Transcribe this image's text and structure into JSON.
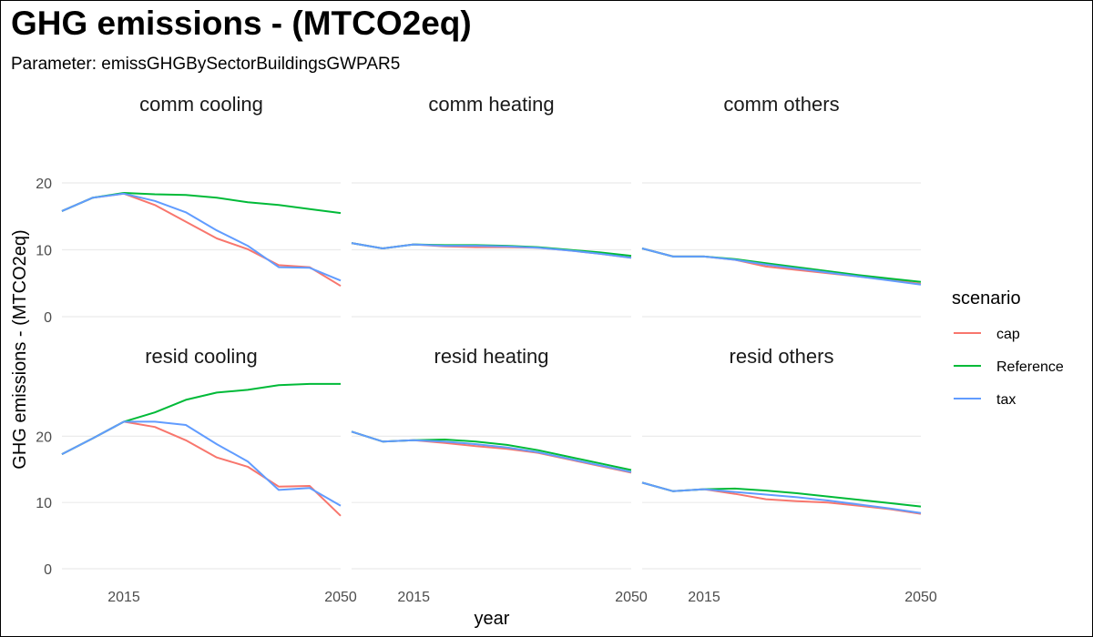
{
  "title": "GHG emissions - (MTCO2eq)",
  "subtitle": "Parameter: emissGHGBySectorBuildingsGWPAR5",
  "chart_data": {
    "type": "line",
    "xlabel": "year",
    "ylabel": "GHG emissions - (MTCO2eq)",
    "x": [
      2005,
      2010,
      2015,
      2020,
      2025,
      2030,
      2035,
      2040,
      2045,
      2050
    ],
    "x_ticks": [
      2015,
      2050
    ],
    "xlim": [
      2005,
      2050
    ],
    "y_ticks": [
      0,
      10,
      20
    ],
    "grid": true,
    "legend": {
      "title": "scenario",
      "placement": "right",
      "entries": [
        {
          "name": "cap",
          "color": "#F8766D"
        },
        {
          "name": "Reference",
          "color": "#00BA38"
        },
        {
          "name": "tax",
          "color": "#619CFF"
        }
      ]
    },
    "rows": [
      {
        "ylim": [
          0,
          27
        ]
      },
      {
        "ylim": [
          0,
          30
        ]
      }
    ],
    "panels": [
      {
        "title": "comm cooling",
        "series": [
          {
            "name": "cap",
            "values": [
              15.8,
              17.8,
              18.4,
              16.7,
              14.2,
              11.7,
              10.1,
              7.7,
              7.4,
              4.6
            ]
          },
          {
            "name": "Reference",
            "values": [
              15.8,
              17.8,
              18.5,
              18.3,
              18.2,
              17.8,
              17.1,
              16.7,
              16.1,
              15.5
            ]
          },
          {
            "name": "tax",
            "values": [
              15.8,
              17.8,
              18.4,
              17.3,
              15.6,
              12.9,
              10.6,
              7.4,
              7.3,
              5.4
            ]
          }
        ]
      },
      {
        "title": "comm heating",
        "series": [
          {
            "name": "cap",
            "values": [
              11.0,
              10.2,
              10.8,
              10.5,
              10.4,
              10.4,
              10.3,
              9.9,
              9.4,
              8.8
            ]
          },
          {
            "name": "Reference",
            "values": [
              11.0,
              10.2,
              10.8,
              10.7,
              10.7,
              10.6,
              10.4,
              10.0,
              9.6,
              9.1
            ]
          },
          {
            "name": "tax",
            "values": [
              11.0,
              10.2,
              10.8,
              10.6,
              10.6,
              10.5,
              10.3,
              9.9,
              9.4,
              8.8
            ]
          }
        ]
      },
      {
        "title": "comm others",
        "series": [
          {
            "name": "cap",
            "values": [
              10.2,
              9.0,
              9.0,
              8.5,
              7.5,
              7.0,
              6.5,
              6.0,
              5.5,
              4.9
            ]
          },
          {
            "name": "Reference",
            "values": [
              10.2,
              9.0,
              9.0,
              8.6,
              8.0,
              7.4,
              6.8,
              6.2,
              5.7,
              5.2
            ]
          },
          {
            "name": "tax",
            "values": [
              10.2,
              9.0,
              9.0,
              8.5,
              7.8,
              7.2,
              6.6,
              6.0,
              5.4,
              4.8
            ]
          }
        ]
      },
      {
        "title": "resid cooling",
        "series": [
          {
            "name": "cap",
            "values": [
              17.3,
              19.7,
              22.2,
              21.4,
              19.4,
              16.8,
              15.4,
              12.4,
              12.5,
              8.0
            ]
          },
          {
            "name": "Reference",
            "values": [
              17.3,
              19.7,
              22.2,
              23.6,
              25.5,
              26.6,
              27.0,
              27.7,
              27.9,
              27.9
            ]
          },
          {
            "name": "tax",
            "values": [
              17.3,
              19.7,
              22.2,
              22.2,
              21.7,
              18.8,
              16.2,
              11.9,
              12.2,
              9.5
            ]
          }
        ]
      },
      {
        "title": "resid heating",
        "series": [
          {
            "name": "cap",
            "values": [
              20.7,
              19.2,
              19.4,
              19.0,
              18.5,
              18.1,
              17.5,
              16.5,
              15.5,
              14.5
            ]
          },
          {
            "name": "Reference",
            "values": [
              20.7,
              19.2,
              19.4,
              19.5,
              19.2,
              18.7,
              17.9,
              16.9,
              15.9,
              14.9
            ]
          },
          {
            "name": "tax",
            "values": [
              20.7,
              19.2,
              19.4,
              19.2,
              18.8,
              18.3,
              17.6,
              16.6,
              15.6,
              14.6
            ]
          }
        ]
      },
      {
        "title": "resid others",
        "series": [
          {
            "name": "cap",
            "values": [
              13.0,
              11.7,
              12.0,
              11.3,
              10.5,
              10.2,
              10.0,
              9.5,
              9.0,
              8.3
            ]
          },
          {
            "name": "Reference",
            "values": [
              13.0,
              11.7,
              12.0,
              12.1,
              11.8,
              11.4,
              10.9,
              10.4,
              9.9,
              9.4
            ]
          },
          {
            "name": "tax",
            "values": [
              13.0,
              11.7,
              12.0,
              11.6,
              11.2,
              10.8,
              10.3,
              9.7,
              9.1,
              8.4
            ]
          }
        ]
      }
    ]
  }
}
